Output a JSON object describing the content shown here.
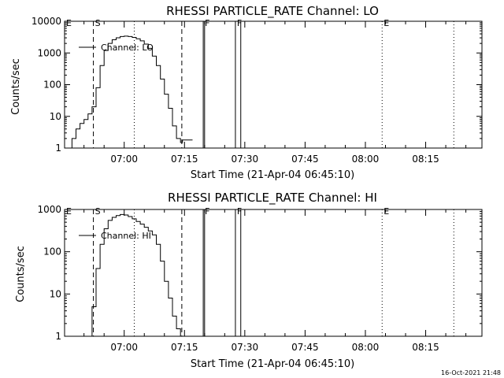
{
  "stamp": "16-Oct-2021 21:48",
  "chart_data": [
    {
      "type": "line",
      "title": "RHESSI PARTICLE_RATE Channel: LO",
      "xlabel": "Start Time (21-Apr-04 06:45:10)",
      "ylabel": "Counts/sec",
      "yscale": "log",
      "ylim": [
        1,
        10000
      ],
      "xlim": [
        "06:45:10",
        "08:29:00"
      ],
      "grid": false,
      "legend_position": "top-left",
      "y_tick_labels": [
        "1",
        "10",
        "100",
        "1000",
        "10000"
      ],
      "y_tick_values": [
        1,
        10,
        100,
        1000,
        10000
      ],
      "x_tick_labels": [
        "07:00",
        "07:15",
        "07:30",
        "07:45",
        "08:00",
        "08:15"
      ],
      "series": [
        {
          "name": "Channel: LO",
          "x": [
            "06:46:30",
            "06:47:00",
            "06:48:00",
            "06:49:00",
            "06:50:00",
            "06:51:00",
            "06:52:00",
            "06:53:00",
            "06:54:00",
            "06:55:00",
            "06:56:00",
            "06:57:00",
            "06:58:00",
            "06:59:00",
            "07:00:00",
            "07:01:00",
            "07:02:00",
            "07:03:00",
            "07:04:00",
            "07:05:00",
            "07:06:00",
            "07:07:00",
            "07:08:00",
            "07:09:00",
            "07:10:00",
            "07:11:00",
            "07:12:00",
            "07:13:00",
            "07:14:00",
            "07:14:30",
            "07:15:00",
            "07:16:00",
            "07:17:00"
          ],
          "values": [
            1,
            2,
            4,
            6,
            8,
            12,
            20,
            80,
            400,
            1200,
            2000,
            2600,
            3000,
            3300,
            3400,
            3300,
            3100,
            2800,
            2400,
            1900,
            1400,
            800,
            400,
            150,
            50,
            18,
            5,
            2,
            1.5,
            1.8,
            1.8,
            1.8,
            1.8
          ]
        }
      ],
      "events": [
        {
          "label": "E",
          "time": "06:45:10",
          "style": "dotted"
        },
        {
          "label": "S",
          "time": "06:52:20",
          "style": "dashed"
        },
        {
          "label": "",
          "time": "07:02:30",
          "style": "dotted"
        },
        {
          "label": "",
          "time": "07:14:20",
          "style": "dashed"
        },
        {
          "label": "F",
          "time": "07:19:40",
          "style": "solid"
        },
        {
          "label": "",
          "time": "07:20:00",
          "style": "solid"
        },
        {
          "label": "F",
          "time": "07:27:40",
          "style": "solid"
        },
        {
          "label": "",
          "time": "07:29:00",
          "style": "solid"
        },
        {
          "label": "E",
          "time": "08:04:10",
          "style": "dotted"
        },
        {
          "label": "",
          "time": "08:22:00",
          "style": "dotted"
        }
      ]
    },
    {
      "type": "line",
      "title": "RHESSI PARTICLE_RATE Channel: HI",
      "xlabel": "Start Time (21-Apr-04 06:45:10)",
      "ylabel": "Counts/sec",
      "yscale": "log",
      "ylim": [
        1,
        1000
      ],
      "xlim": [
        "06:45:10",
        "08:29:00"
      ],
      "grid": false,
      "legend_position": "top-left",
      "y_tick_labels": [
        "1",
        "10",
        "100",
        "1000"
      ],
      "y_tick_values": [
        1,
        10,
        100,
        1000
      ],
      "x_tick_labels": [
        "07:00",
        "07:15",
        "07:30",
        "07:45",
        "08:00",
        "08:15"
      ],
      "series": [
        {
          "name": "Channel: HI",
          "x": [
            "06:51:00",
            "06:52:00",
            "06:53:00",
            "06:54:00",
            "06:55:00",
            "06:56:00",
            "06:57:00",
            "06:58:00",
            "06:59:00",
            "07:00:00",
            "07:01:00",
            "07:02:00",
            "07:03:00",
            "07:04:00",
            "07:05:00",
            "07:06:00",
            "07:07:00",
            "07:08:00",
            "07:09:00",
            "07:10:00",
            "07:11:00",
            "07:12:00",
            "07:13:00",
            "07:14:00"
          ],
          "values": [
            1,
            5,
            40,
            150,
            350,
            550,
            650,
            720,
            760,
            740,
            680,
            600,
            520,
            450,
            380,
            310,
            250,
            150,
            60,
            20,
            8,
            3,
            1.5,
            1
          ]
        }
      ],
      "events": [
        {
          "label": "E",
          "time": "06:45:10",
          "style": "dotted"
        },
        {
          "label": "S",
          "time": "06:52:20",
          "style": "dashed"
        },
        {
          "label": "",
          "time": "07:02:30",
          "style": "dotted"
        },
        {
          "label": "",
          "time": "07:14:20",
          "style": "dashed"
        },
        {
          "label": "F",
          "time": "07:19:40",
          "style": "solid"
        },
        {
          "label": "",
          "time": "07:20:00",
          "style": "solid"
        },
        {
          "label": "F",
          "time": "07:27:40",
          "style": "solid"
        },
        {
          "label": "",
          "time": "07:29:00",
          "style": "solid"
        },
        {
          "label": "E",
          "time": "08:04:10",
          "style": "dotted"
        },
        {
          "label": "",
          "time": "08:22:00",
          "style": "dotted"
        }
      ]
    }
  ]
}
